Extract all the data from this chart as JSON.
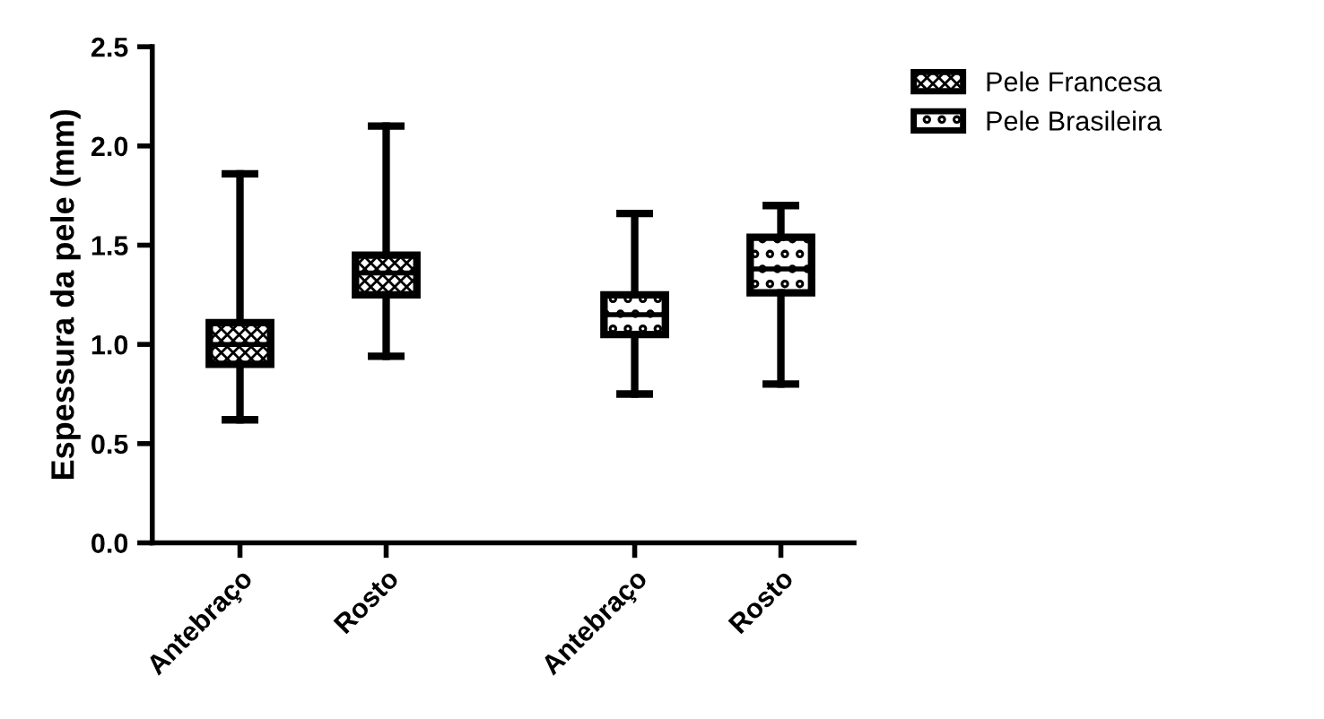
{
  "chart_data": {
    "type": "box",
    "ylabel": "Espessura da pele (mm)",
    "categories": [
      "Antebraço",
      "Rosto",
      "Antebraço",
      "Rosto"
    ],
    "ylim": [
      0,
      2.5
    ],
    "yticks": [
      {
        "value": 0,
        "label": "0.0"
      },
      {
        "value": 0.5,
        "label": "0.5"
      },
      {
        "value": 1,
        "label": "1.0"
      },
      {
        "value": 1.5,
        "label": "1.5"
      },
      {
        "value": 2,
        "label": "2.0"
      },
      {
        "value": 2.5,
        "label": "2.5"
      }
    ],
    "grid": false,
    "legend": "top right",
    "series": [
      {
        "name": "Pele Francesa",
        "color": "#000000",
        "boxes": [
          {
            "low": 0.62,
            "q1": 0.9,
            "median": 1.0,
            "q3": 1.11,
            "high": 1.86
          },
          {
            "low": 0.94,
            "q1": 1.25,
            "median": 1.36,
            "q3": 1.45,
            "high": 2.1
          },
          null,
          null
        ]
      },
      {
        "name": "Pele Brasileira",
        "color": "#000000",
        "boxes": [
          null,
          null,
          {
            "low": 0.75,
            "q1": 1.05,
            "median": 1.15,
            "q3": 1.25,
            "high": 1.66
          },
          {
            "low": 0.8,
            "q1": 1.26,
            "median": 1.38,
            "q3": 1.54,
            "high": 1.7
          }
        ]
      }
    ]
  }
}
